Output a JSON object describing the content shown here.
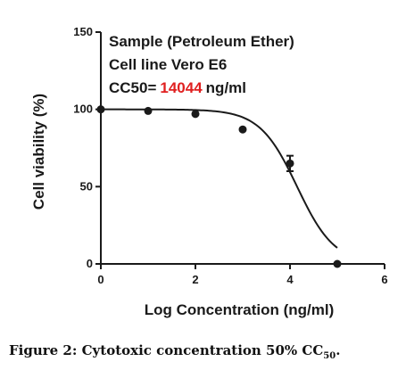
{
  "chart_data": {
    "type": "scatter",
    "xlabel": "Log Concentration (ng/ml)",
    "ylabel": "Cell viability (%)",
    "xlim": [
      0,
      6
    ],
    "ylim": [
      0,
      150
    ],
    "xticks": [
      "0",
      "2",
      "4",
      "6"
    ],
    "yticks": [
      "0",
      "50",
      "100",
      "150"
    ],
    "grid": false,
    "annotations": {
      "line1": "Sample (Petroleum Ether)",
      "line2": "Cell line Vero E6",
      "cc50_label": "CC50=",
      "cc50_value": "14044",
      "cc50_unit": "ng/ml"
    },
    "points": [
      {
        "x": 0,
        "y": 100
      },
      {
        "x": 1,
        "y": 99
      },
      {
        "x": 2,
        "y": 97
      },
      {
        "x": 3,
        "y": 87
      },
      {
        "x": 4,
        "y": 65,
        "err": 5
      },
      {
        "x": 5,
        "y": 0
      }
    ],
    "fit": {
      "model": "sigmoidal dose-response",
      "top": 100,
      "bottom": 0,
      "logEC50": 4.15,
      "hill": 1.1,
      "x_range": [
        0,
        5
      ]
    }
  },
  "caption": {
    "text": "Figure 2: Cytotoxic concentration 50% CC",
    "sub": "50",
    "end": "."
  }
}
